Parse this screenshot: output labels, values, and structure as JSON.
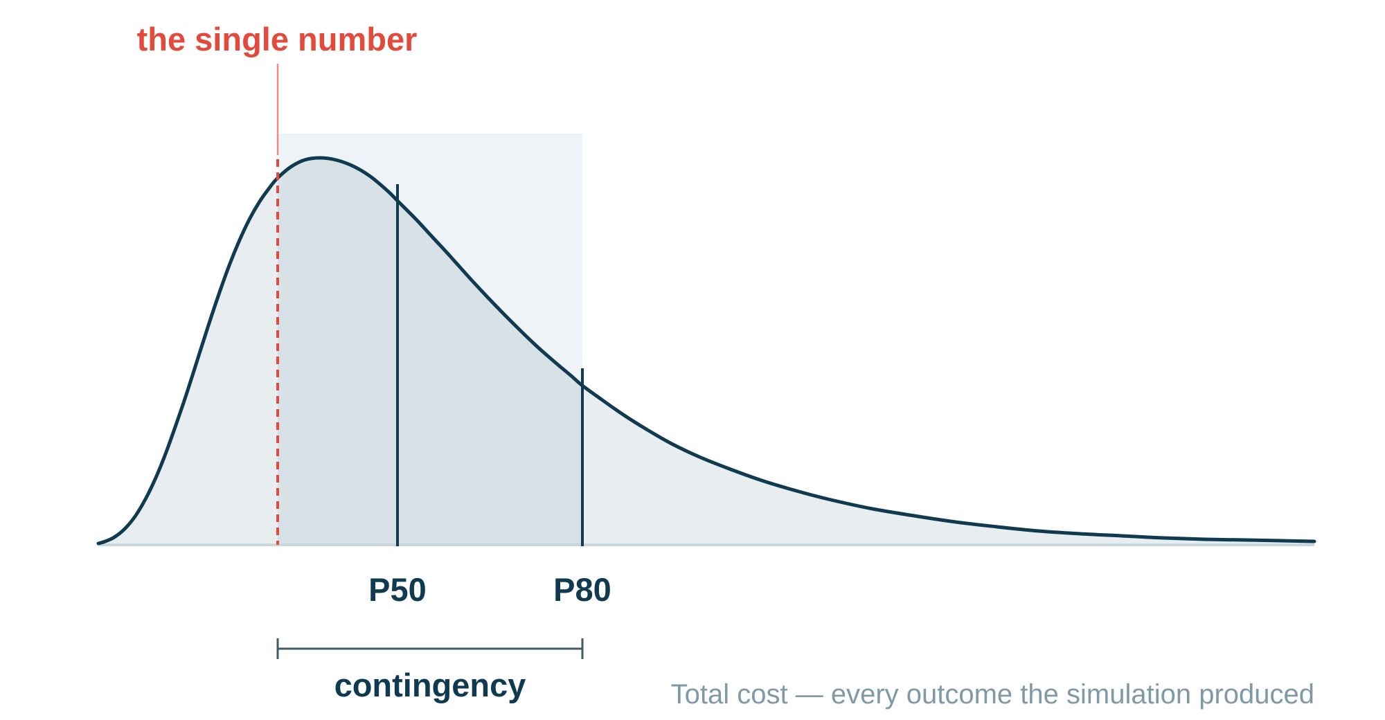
{
  "annotation": {
    "single_number_label": "the single number"
  },
  "markers": {
    "p50_label": "P50",
    "p80_label": "P80"
  },
  "bracket": {
    "label": "contingency"
  },
  "caption": {
    "text": "Total cost — every outcome the simulation produced"
  },
  "colors": {
    "curve": "#0f3a4f",
    "fill": "#e8eef0",
    "band": "#edf3f6",
    "band_under_curve": "#d8e2e6",
    "highlight": "#e34a3c",
    "baseline": "#c8d6dd",
    "caption": "#7f9aa6",
    "bracket": "#3d5a69"
  }
}
